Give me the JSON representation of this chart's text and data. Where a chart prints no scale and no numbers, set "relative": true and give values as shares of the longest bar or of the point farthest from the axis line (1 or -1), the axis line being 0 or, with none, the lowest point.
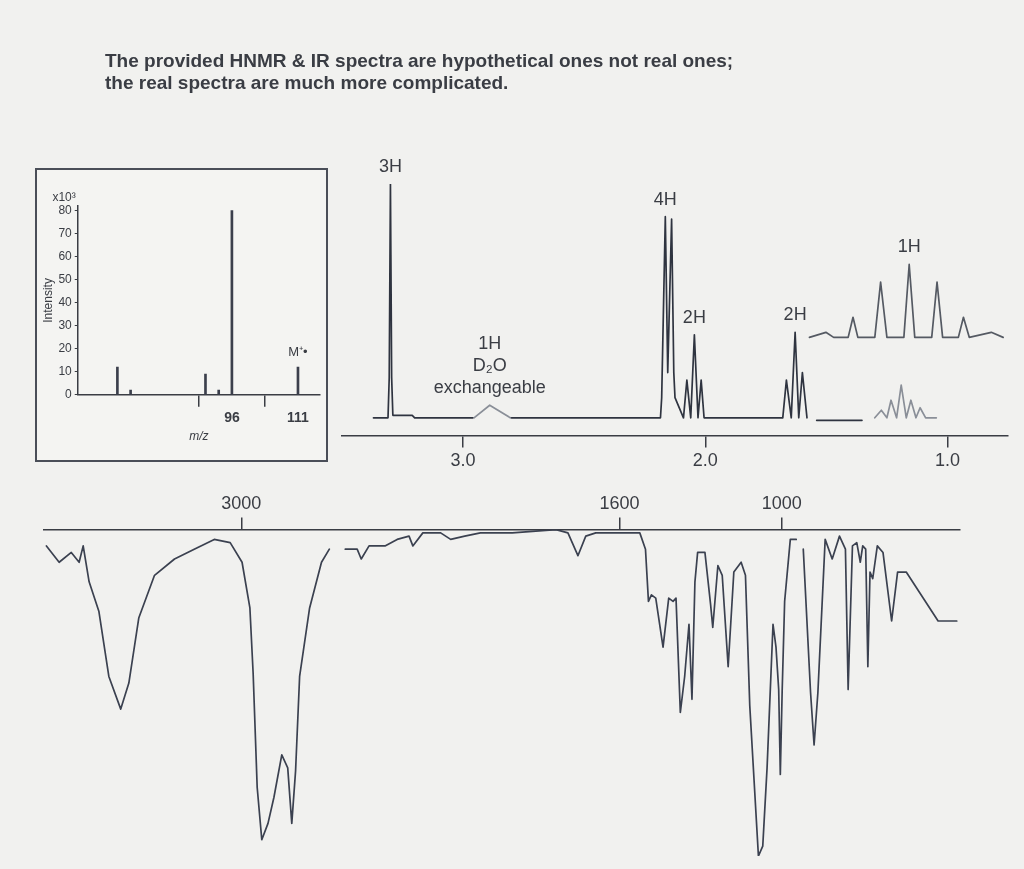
{
  "chart_data": [
    {
      "type": "bar",
      "title": "The provided HNMR & IR spectra are hypothetical ones not real ones;\nthe real spectra are much more complicated.",
      "xlabel": "m/z",
      "ylabel": "Intensity",
      "x": [
        70,
        73,
        90,
        93,
        96,
        111
      ],
      "values": [
        12,
        2,
        9,
        2,
        80,
        12
      ],
      "color": "#3b3f4c",
      "xlim": [
        61,
        116
      ],
      "xticks": [
        96,
        111
      ],
      "ylim": [
        0,
        82
      ],
      "yticks": [
        0,
        10,
        20,
        30,
        40,
        50,
        60,
        70,
        80
      ],
      "annotations": [
        "x10³",
        {
          "text": "M⁺•",
          "x": 111,
          "y": 12
        }
      ],
      "grid": false,
      "legend": false
    },
    {
      "type": "line",
      "relative": true,
      "xlim": [
        3.5,
        0.75
      ],
      "xticks": [
        {
          "value": 3,
          "label": "3.0"
        },
        {
          "value": 2,
          "label": "2.0"
        },
        {
          "value": 1,
          "label": "1.0"
        }
      ],
      "series": [
        {
          "color": "#2f3440",
          "x": [
            3.37,
            3.31,
            3.305,
            3.3,
            3.295,
            3.29,
            3.21,
            3.2,
            2.96,
            2.88,
            2.8,
            2.185,
            2.18,
            2.165,
            2.155,
            2.139,
            2.13,
            2.125,
            2.09,
            2.076,
            2.06,
            2.045,
            2.03,
            2.017,
            2.005,
            1.68,
            1.665,
            1.645,
            1.629,
            1.614,
            1.599,
            1.58,
            1.56,
            1.54,
            1.353
          ],
          "values": [
            0.07,
            0.07,
            0.23,
            1.0,
            0.23,
            0.08,
            0.08,
            0.07,
            0.07,
            null,
            0.07,
            0.07,
            0.15,
            0.87,
            0.25,
            0.86,
            0.25,
            0.15,
            0.07,
            0.22,
            0.07,
            0.4,
            0.07,
            0.22,
            0.07,
            0.07,
            0.22,
            0.07,
            0.41,
            0.07,
            0.25,
            0.07,
            null,
            0.06,
            0.06
          ]
        },
        {
          "color": "#8a8f98",
          "x": [
            2.955,
            2.89,
            2.805,
            2.2,
            1.3,
            1.273,
            1.25,
            1.233,
            1.21,
            1.191,
            1.17,
            1.151,
            1.13,
            1.113,
            1.09,
            1.046
          ],
          "values": [
            0.07,
            0.12,
            0.07,
            null,
            0.07,
            0.1,
            0.07,
            0.14,
            0.07,
            0.2,
            0.07,
            0.14,
            0.07,
            0.11,
            0.07,
            0.07
          ]
        },
        {
          "color": "#555a63",
          "x": [
            1.57,
            1.502,
            1.47,
            1.41,
            1.39,
            1.37,
            1.3,
            1.276,
            1.25,
            1.18,
            1.158,
            1.135,
            1.065,
            1.043,
            1.02,
            0.955,
            0.934,
            0.91,
            0.819,
            0.77
          ],
          "values": [
            0.39,
            0.41,
            0.39,
            0.39,
            0.47,
            0.39,
            0.39,
            0.61,
            0.39,
            0.39,
            0.68,
            0.39,
            0.39,
            0.61,
            0.39,
            0.39,
            0.47,
            0.39,
            0.41,
            0.39
          ]
        }
      ],
      "annotations": [
        {
          "text": "3H",
          "x": 3.3,
          "y": 1.0
        },
        {
          "text": "1H\nD₂O\nexchangeable",
          "x": 2.89,
          "y": 0.12
        },
        {
          "text": "4H",
          "x": 2.165,
          "y": 0.87
        },
        {
          "text": "2H",
          "x": 2.045,
          "y": 0.4
        },
        {
          "text": "2H",
          "x": 1.629,
          "y": 0.41
        },
        {
          "text": "1H",
          "x": 1.158,
          "y": 0.68
        }
      ],
      "grid": false,
      "legend": false
    },
    {
      "type": "line",
      "relative": true,
      "xlim": [
        3730,
        340
      ],
      "xticks": [
        3000,
        1600,
        1000
      ],
      "color": "#3b4150",
      "x": [
        3721,
        3674,
        3629,
        3600,
        3585,
        3563,
        3527,
        3490,
        3446,
        3416,
        3379,
        3321,
        3247,
        3174,
        3100,
        3041,
        2997,
        2968,
        2956,
        2941,
        2924,
        2901,
        2879,
        2850,
        2828,
        2813,
        2799,
        2784,
        2747,
        2703,
        2674,
        2650,
        2615,
        2571,
        2556,
        2527,
        2468,
        2423,
        2379,
        2365,
        2328,
        2262,
        2225,
        2173,
        2115,
        1997,
        1835,
        1791,
        1754,
        1725,
        1688,
        1600,
        1525,
        1504,
        1493,
        1482,
        1466,
        1439,
        1418,
        1402,
        1391,
        1375,
        1359,
        1343,
        1332,
        1321,
        1311,
        1284,
        1263,
        1255,
        1236,
        1220,
        1198,
        1177,
        1150,
        1134,
        1118,
        1102,
        1086,
        1070,
        1054,
        1032,
        1021,
        1011,
        1005,
        998,
        989,
        968,
        946,
        935,
        920,
        893,
        880,
        866,
        839,
        813,
        786,
        764,
        754,
        738,
        722,
        709,
        700,
        689,
        681,
        673,
        663,
        646,
        625,
        593,
        571,
        539,
        421,
        352
      ],
      "values": [
        0.95,
        0.9,
        0.93,
        0.9,
        0.95,
        0.84,
        0.75,
        0.55,
        0.45,
        0.53,
        0.73,
        0.86,
        0.91,
        0.94,
        0.97,
        0.96,
        0.9,
        0.76,
        0.56,
        0.21,
        0.05,
        0.1,
        0.18,
        0.31,
        0.27,
        0.1,
        0.26,
        0.55,
        0.76,
        0.9,
        0.94,
        null,
        0.94,
        0.94,
        0.91,
        0.95,
        0.95,
        0.97,
        0.98,
        0.95,
        0.99,
        0.99,
        0.97,
        0.98,
        0.99,
        0.99,
        1.0,
        0.99,
        0.92,
        0.98,
        0.99,
        0.99,
        0.99,
        0.94,
        0.78,
        0.8,
        0.79,
        0.64,
        0.79,
        0.78,
        0.79,
        0.44,
        0.55,
        0.71,
        0.48,
        0.84,
        0.93,
        0.93,
        0.77,
        0.7,
        0.89,
        0.86,
        0.58,
        0.87,
        0.9,
        0.86,
        0.46,
        0.23,
        0.0,
        0.03,
        0.27,
        0.71,
        0.64,
        0.51,
        0.25,
        0.51,
        0.78,
        0.97,
        0.97,
        null,
        0.94,
        0.5,
        0.34,
        0.5,
        0.97,
        0.91,
        0.98,
        0.94,
        0.51,
        0.95,
        0.96,
        0.9,
        0.95,
        0.94,
        0.58,
        0.87,
        0.85,
        0.95,
        0.93,
        0.72,
        0.87,
        0.87,
        0.72,
        0.72
      ],
      "grid": false,
      "legend": false
    }
  ]
}
